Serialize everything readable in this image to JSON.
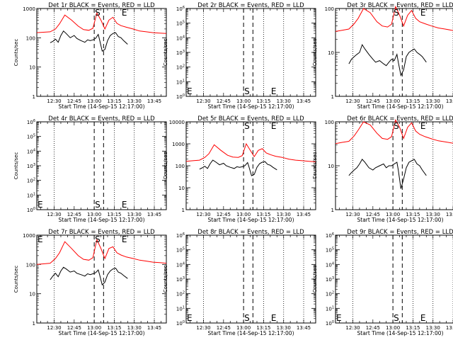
{
  "figure": {
    "x_tick_labels": [
      "12:30",
      "12:45",
      "13:00",
      "13:15",
      "13:30",
      "13:45"
    ],
    "xlabel": "Start Time (14-Sep-15 12:17:00)",
    "ylabel": "Counts/sec",
    "colors": {
      "events": "#000000",
      "lld": "#ff0000",
      "axes": "#000000"
    }
  },
  "chart_data": [
    {
      "type": "line",
      "title": "Det 1r BLACK = Events, RED = LLD",
      "ylabel": "Counts/sec",
      "xlabel": "Start Time (14-Sep-15 12:17:00)",
      "x_unit": "minutes after 12:17:00",
      "xlim": [
        0,
        97
      ],
      "yscale": "log",
      "ylim": [
        1,
        1000
      ],
      "y_tick_labels": [
        "1",
        "10",
        "100",
        "1000"
      ],
      "dotted_lines_x": [
        13,
        58,
        73,
        88
      ],
      "dashed_lines_x": [
        43,
        50
      ],
      "markers": [
        {
          "x": 43,
          "label": "S"
        },
        {
          "x": 63,
          "label": "E"
        }
      ],
      "marker_position": "top",
      "series": [
        {
          "name": "LLD",
          "color": "#ff0000",
          "x": [
            0,
            5,
            10,
            14,
            17,
            21,
            26,
            31,
            35,
            39,
            42,
            45,
            48,
            51,
            54,
            57,
            60,
            63,
            67,
            72,
            77,
            82,
            87,
            92,
            97
          ],
          "y": [
            150,
            155,
            160,
            200,
            300,
            600,
            400,
            250,
            190,
            180,
            210,
            700,
            400,
            200,
            400,
            500,
            310,
            260,
            230,
            200,
            170,
            160,
            150,
            145,
            140
          ]
        },
        {
          "name": "Events",
          "color": "#000000",
          "x": [
            10,
            12,
            14,
            16,
            18,
            20,
            22,
            25,
            28,
            30,
            33,
            36,
            38,
            40,
            42,
            44,
            46,
            47,
            49,
            51,
            53,
            55,
            57,
            59,
            61,
            63,
            65,
            68
          ],
          "y": [
            68,
            75,
            90,
            70,
            120,
            170,
            140,
            100,
            120,
            95,
            80,
            70,
            85,
            80,
            85,
            95,
            130,
            85,
            35,
            40,
            80,
            120,
            140,
            150,
            110,
            100,
            80,
            60
          ]
        }
      ]
    },
    {
      "type": "line",
      "title": "Det 2r BLACK = Events, RED = LLD",
      "ylabel": "Counts/sec",
      "xlabel": "Start Time (14-Sep-15 12:17:00)",
      "x_unit": "minutes after 12:17:00",
      "xlim": [
        0,
        97
      ],
      "yscale": "log",
      "ylim": [
        1,
        1000000
      ],
      "y_tick_labels": [
        "10^0",
        "10^1",
        "10^2",
        "10^3",
        "10^4",
        "10^5",
        "10^6"
      ],
      "dotted_lines_x": [
        13,
        58,
        73,
        88
      ],
      "dashed_lines_x": [
        43,
        50
      ],
      "markers": [
        {
          "x": 0,
          "label": "E"
        },
        {
          "x": 43,
          "label": "S"
        },
        {
          "x": 63,
          "label": "E"
        }
      ],
      "marker_position": "bottom",
      "series": []
    },
    {
      "type": "line",
      "title": "Det 3r BLACK = Events, RED = LLD",
      "ylabel": "Counts/sec",
      "xlabel": "Start Time (14-Sep-15 12:17:00)",
      "x_unit": "minutes after 12:17:00",
      "xlim": [
        0,
        97
      ],
      "yscale": "log",
      "ylim": [
        1,
        100
      ],
      "y_tick_labels": [
        "1",
        "10",
        "100"
      ],
      "dotted_lines_x": [
        13,
        58,
        73,
        88
      ],
      "dashed_lines_x": [
        43,
        50
      ],
      "markers": [
        {
          "x": 43,
          "label": "S"
        },
        {
          "x": 63,
          "label": "E"
        }
      ],
      "marker_position": "top",
      "series": [
        {
          "name": "LLD",
          "color": "#ff0000",
          "x": [
            0,
            5,
            10,
            14,
            17,
            21,
            26,
            31,
            35,
            39,
            42,
            45,
            48,
            51,
            54,
            57,
            60,
            63,
            67,
            72,
            77,
            82,
            87,
            92,
            97
          ],
          "y": [
            30,
            32,
            34,
            45,
            60,
            100,
            80,
            50,
            40,
            38,
            44,
            110,
            70,
            40,
            70,
            90,
            60,
            50,
            45,
            40,
            36,
            34,
            32,
            31,
            30
          ]
        },
        {
          "name": "Events",
          "color": "#000000",
          "x": [
            10,
            12,
            14,
            16,
            18,
            20,
            22,
            25,
            28,
            30,
            33,
            36,
            38,
            40,
            42,
            44,
            46,
            47,
            49,
            51,
            53,
            55,
            57,
            59,
            61,
            63,
            65,
            68
          ],
          "y": [
            5.5,
            7,
            8,
            9,
            10,
            15,
            12,
            9,
            7,
            6,
            6.5,
            5.5,
            5,
            6,
            7,
            6.5,
            9,
            6,
            3,
            4,
            8,
            10,
            11,
            12,
            10,
            9,
            8,
            6
          ]
        }
      ]
    },
    {
      "type": "line",
      "title": "Det 4r BLACK = Events, RED = LLD",
      "ylabel": "Counts/sec",
      "xlabel": "Start Time (14-Sep-15 12:17:00)",
      "x_unit": "minutes after 12:17:00",
      "xlim": [
        0,
        97
      ],
      "yscale": "log",
      "ylim": [
        1,
        1000000
      ],
      "y_tick_labels": [
        "10^0",
        "10^1",
        "10^2",
        "10^3",
        "10^4",
        "10^5",
        "10^6"
      ],
      "dotted_lines_x": [
        13,
        58,
        73,
        88
      ],
      "dashed_lines_x": [
        43,
        50
      ],
      "markers": [
        {
          "x": 0,
          "label": "E"
        },
        {
          "x": 43,
          "label": "S"
        },
        {
          "x": 63,
          "label": "E"
        }
      ],
      "marker_position": "bottom",
      "series": []
    },
    {
      "type": "line",
      "title": "Det 5r BLACK = Events, RED = LLD",
      "ylabel": "Counts/sec",
      "xlabel": "Start Time (14-Sep-15 12:17:00)",
      "x_unit": "minutes after 12:17:00",
      "xlim": [
        0,
        97
      ],
      "yscale": "log",
      "ylim": [
        1,
        10000
      ],
      "y_tick_labels": [
        "1",
        "10",
        "100",
        "1000",
        "10000"
      ],
      "dotted_lines_x": [
        13,
        58,
        73,
        88
      ],
      "dashed_lines_x": [
        43,
        50
      ],
      "markers": [
        {
          "x": 43,
          "label": "S"
        },
        {
          "x": 63,
          "label": "E"
        }
      ],
      "marker_position": "top",
      "series": [
        {
          "name": "LLD",
          "color": "#ff0000",
          "x": [
            0,
            5,
            10,
            14,
            17,
            21,
            26,
            31,
            35,
            39,
            42,
            45,
            48,
            51,
            54,
            57,
            60,
            63,
            67,
            72,
            77,
            82,
            87,
            92,
            97
          ],
          "y": [
            160,
            170,
            180,
            240,
            350,
            900,
            500,
            300,
            250,
            240,
            290,
            1000,
            500,
            260,
            500,
            600,
            380,
            320,
            270,
            240,
            200,
            180,
            170,
            160,
            150
          ]
        },
        {
          "name": "Events",
          "color": "#000000",
          "x": [
            10,
            12,
            14,
            16,
            18,
            20,
            22,
            25,
            28,
            30,
            33,
            36,
            38,
            40,
            42,
            44,
            46,
            47,
            49,
            51,
            53,
            55,
            57,
            59,
            61,
            63,
            65,
            68
          ],
          "y": [
            70,
            80,
            95,
            75,
            125,
            180,
            150,
            110,
            130,
            100,
            85,
            75,
            90,
            85,
            90,
            100,
            140,
            90,
            35,
            40,
            85,
            125,
            145,
            155,
            115,
            105,
            85,
            65
          ]
        }
      ]
    },
    {
      "type": "line",
      "title": "Det 6r BLACK = Events, RED = LLD",
      "ylabel": "Counts/sec",
      "xlabel": "Start Time (14-Sep-15 12:17:00)",
      "x_unit": "minutes after 12:17:00",
      "xlim": [
        0,
        97
      ],
      "yscale": "log",
      "ylim": [
        1,
        100
      ],
      "y_tick_labels": [
        "1",
        "10",
        "100"
      ],
      "dotted_lines_x": [
        13,
        58,
        73,
        88
      ],
      "dashed_lines_x": [
        43,
        50
      ],
      "markers": [
        {
          "x": 43,
          "label": "S"
        },
        {
          "x": 63,
          "label": "E"
        }
      ],
      "marker_position": "top",
      "series": [
        {
          "name": "LLD",
          "color": "#ff0000",
          "x": [
            0,
            5,
            10,
            14,
            17,
            21,
            26,
            31,
            35,
            39,
            42,
            45,
            48,
            51,
            54,
            57,
            60,
            63,
            67,
            72,
            77,
            82,
            87,
            92,
            97
          ],
          "y": [
            32,
            34,
            36,
            48,
            65,
            100,
            85,
            55,
            42,
            40,
            46,
            110,
            75,
            42,
            75,
            95,
            62,
            52,
            46,
            41,
            37,
            35,
            33,
            32,
            31
          ]
        },
        {
          "name": "Events",
          "color": "#000000",
          "x": [
            10,
            12,
            14,
            16,
            18,
            20,
            22,
            25,
            28,
            30,
            33,
            36,
            38,
            40,
            42,
            44,
            46,
            47,
            49,
            51,
            53,
            55,
            57,
            59,
            61,
            63,
            65,
            68
          ],
          "y": [
            6,
            7,
            8,
            9,
            11,
            14,
            12,
            9,
            8,
            9,
            10,
            11,
            9,
            10,
            10,
            11,
            12,
            8,
            3,
            5,
            9,
            12,
            13,
            14,
            11,
            10,
            8,
            6
          ]
        }
      ]
    },
    {
      "type": "line",
      "title": "Det 7r BLACK = Events, RED = LLD",
      "ylabel": "Counts/sec",
      "xlabel": "Start Time (14-Sep-15 12:17:00)",
      "x_unit": "minutes after 12:17:00",
      "xlim": [
        0,
        97
      ],
      "yscale": "log",
      "ylim": [
        1,
        1000
      ],
      "y_tick_labels": [
        "1",
        "10",
        "100",
        "1000"
      ],
      "dotted_lines_x": [
        13,
        58,
        73,
        88
      ],
      "dashed_lines_x": [
        43,
        50
      ],
      "markers": [
        {
          "x": 0,
          "label": "E"
        },
        {
          "x": 43,
          "label": "S"
        },
        {
          "x": 63,
          "label": "E"
        }
      ],
      "marker_position": "top",
      "series": [
        {
          "name": "LLD",
          "color": "#ff0000",
          "x": [
            0,
            5,
            10,
            14,
            17,
            21,
            26,
            31,
            35,
            39,
            42,
            45,
            48,
            51,
            54,
            57,
            60,
            63,
            67,
            72,
            77,
            82,
            87,
            92,
            97
          ],
          "y": [
            100,
            105,
            110,
            160,
            250,
            600,
            350,
            200,
            150,
            140,
            170,
            700,
            350,
            160,
            350,
            400,
            250,
            210,
            180,
            160,
            140,
            130,
            120,
            115,
            110
          ]
        },
        {
          "name": "Events",
          "color": "#000000",
          "x": [
            10,
            12,
            14,
            16,
            18,
            20,
            22,
            25,
            28,
            30,
            33,
            36,
            38,
            40,
            42,
            44,
            46,
            47,
            49,
            51,
            53,
            55,
            57,
            59,
            61,
            63,
            65,
            68
          ],
          "y": [
            30,
            40,
            50,
            38,
            60,
            80,
            70,
            55,
            60,
            50,
            45,
            40,
            48,
            45,
            48,
            52,
            65,
            45,
            20,
            25,
            45,
            60,
            70,
            75,
            55,
            50,
            42,
            33
          ]
        }
      ]
    },
    {
      "type": "line",
      "title": "Det 8r BLACK = Events, RED = LLD",
      "ylabel": "Counts/sec",
      "xlabel": "Start Time (14-Sep-15 12:17:00)",
      "x_unit": "minutes after 12:17:00",
      "xlim": [
        0,
        97
      ],
      "yscale": "log",
      "ylim": [
        1,
        1000000
      ],
      "y_tick_labels": [
        "10^0",
        "10^1",
        "10^2",
        "10^3",
        "10^4",
        "10^5",
        "10^6"
      ],
      "dotted_lines_x": [
        13,
        58,
        73,
        88
      ],
      "dashed_lines_x": [
        43,
        50
      ],
      "markers": [
        {
          "x": 0,
          "label": "E"
        },
        {
          "x": 43,
          "label": "S"
        },
        {
          "x": 63,
          "label": "E"
        }
      ],
      "marker_position": "bottom",
      "series": []
    },
    {
      "type": "line",
      "title": "Det 9r BLACK = Events, RED = LLD",
      "ylabel": "Counts/sec",
      "xlabel": "Start Time (14-Sep-15 12:17:00)",
      "x_unit": "minutes after 12:17:00",
      "xlim": [
        0,
        97
      ],
      "yscale": "log",
      "ylim": [
        1,
        1000000
      ],
      "y_tick_labels": [
        "10^0",
        "10^1",
        "10^2",
        "10^3",
        "10^4",
        "10^5",
        "10^6"
      ],
      "dotted_lines_x": [
        13,
        58,
        73,
        88
      ],
      "dashed_lines_x": [
        43,
        50
      ],
      "markers": [
        {
          "x": 0,
          "label": "E"
        },
        {
          "x": 43,
          "label": "S"
        },
        {
          "x": 63,
          "label": "E"
        }
      ],
      "marker_position": "bottom",
      "series": []
    }
  ]
}
